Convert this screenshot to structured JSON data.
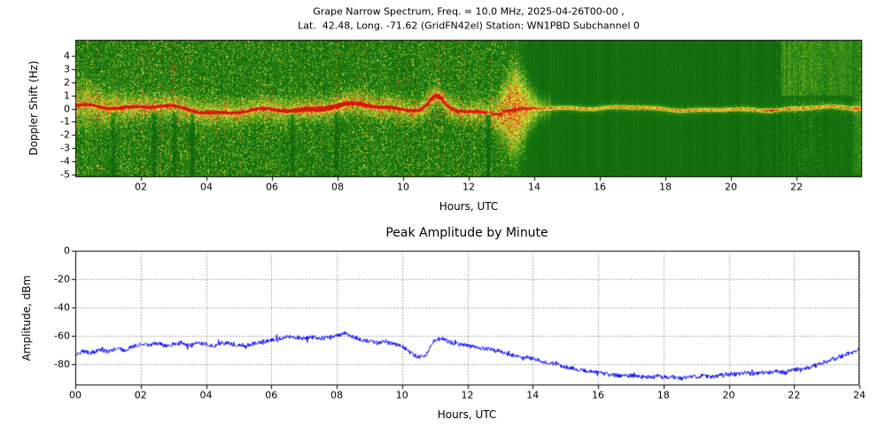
{
  "chart_data": [
    {
      "type": "heatmap",
      "subtype": "doppler-spectrogram",
      "title_line1": "Grape Narrow Spectrum, Freq. = 10.0 MHz, 2025-04-26T00-00 ,",
      "title_line2": "Lat.  42.48, Long. -71.62 (GridFN42el) Station: WN1PBD Subchannel 0",
      "xlabel": "Hours, UTC",
      "ylabel": "Doppler Shift (Hz)",
      "xlim": [
        0,
        24
      ],
      "ylim": [
        -5.2,
        5.2
      ],
      "xtick_values": [
        2,
        4,
        6,
        8,
        10,
        12,
        14,
        16,
        18,
        20,
        22
      ],
      "xtick_labels": [
        "02",
        "04",
        "06",
        "08",
        "10",
        "12",
        "14",
        "16",
        "18",
        "20",
        "22"
      ],
      "ytick_values": [
        4,
        3,
        2,
        1,
        0,
        -1,
        -2,
        -3,
        -4,
        -5
      ],
      "ytick_labels": [
        "4",
        "3",
        "2",
        "1",
        "0",
        "-1",
        "-2",
        "-3",
        "-4",
        "-5"
      ],
      "grid": false,
      "description": "Spectrogram on green background with yellow speckle noise columns. A strong red/orange Doppler trace wanders around 0 Hz from 00 to ~12 UTC (rising to about +1 Hz near 11 UTC), fades through a wide yellow fuzzy burst near 13.4 UTC, then continues as a thin faint yellow line near 0 Hz until 24 UTC with a small brightening near 21.2 UTC. Noise activity is high before ~13 UTC and quiet after ~14 UTC; a lighter patch appears above +1 Hz between ~21.5 and 23.7 UTC and a bright column at the right edge.",
      "colormap": [
        {
          "v": 0.0,
          "rgb": [
            8,
            80,
            8
          ]
        },
        {
          "v": 0.3,
          "rgb": [
            24,
            122,
            16
          ]
        },
        {
          "v": 0.55,
          "rgb": [
            150,
            195,
            40
          ]
        },
        {
          "v": 0.7,
          "rgb": [
            235,
            235,
            70
          ]
        },
        {
          "v": 0.85,
          "rgb": [
            255,
            150,
            30
          ]
        },
        {
          "v": 1.0,
          "rgb": [
            210,
            25,
            12
          ]
        }
      ],
      "features": {
        "trace": {
          "center_hz": 0,
          "strong_until_hour": 12.3,
          "weak_amplitude": 0.5,
          "blob_hour": 11.0,
          "blob_peak_hz": 0.9,
          "fade_burst_hour": 13.4,
          "late_blip_hour": 21.2
        },
        "noise": {
          "speckle_active_until_hour": 12.8,
          "quiet_after_hour": 14.2,
          "late_activity_hour": 22.3
        },
        "patches": {
          "top_right_hours": [
            21.5,
            23.7
          ],
          "top_right_above_hz": 1.0,
          "right_edge_hour": 23.72
        },
        "dark_plume_hours": [
          1.15,
          2.4,
          3.0,
          3.55,
          6.6,
          7.95,
          12.6
        ]
      }
    },
    {
      "type": "line",
      "title": "Peak Amplitude by Minute",
      "xlabel": "Hours, UTC",
      "ylabel": "Amplitude, dBm",
      "xlim": [
        0,
        24
      ],
      "ylim": [
        -95,
        0
      ],
      "xtick_values": [
        0,
        2,
        4,
        6,
        8,
        10,
        12,
        14,
        16,
        18,
        20,
        22,
        24
      ],
      "xtick_labels": [
        "00",
        "02",
        "04",
        "06",
        "08",
        "10",
        "12",
        "14",
        "16",
        "18",
        "20",
        "22",
        "24"
      ],
      "ytick_values": [
        0,
        -20,
        -40,
        -60,
        -80
      ],
      "ytick_labels": [
        "0",
        "-20",
        "-40",
        "-60",
        "-80"
      ],
      "grid": true,
      "grid_style": "dotted",
      "line_color": "#0000ff",
      "x_start": 0,
      "x_step": 0.25,
      "y": [
        -73,
        -71,
        -72,
        -70,
        -71,
        -69,
        -70,
        -68,
        -66,
        -67,
        -65,
        -67,
        -66,
        -65,
        -67,
        -65,
        -66,
        -67,
        -65,
        -66,
        -66,
        -67,
        -65,
        -64,
        -63,
        -62,
        -60,
        -61,
        -62,
        -61,
        -62,
        -61,
        -60,
        -58,
        -61,
        -63,
        -64,
        -65,
        -64,
        -66,
        -67,
        -72,
        -75,
        -73,
        -63,
        -62,
        -65,
        -66,
        -67,
        -68,
        -69,
        -70,
        -71,
        -73,
        -74,
        -75,
        -76,
        -78,
        -79,
        -80,
        -82,
        -83,
        -84,
        -85,
        -86,
        -87,
        -88,
        -88,
        -88,
        -89,
        -89,
        -89,
        -89,
        -89,
        -90,
        -89,
        -89,
        -88,
        -89,
        -88,
        -87,
        -87,
        -86,
        -87,
        -86,
        -86,
        -85,
        -86,
        -84,
        -83,
        -82,
        -80,
        -78,
        -76,
        -74,
        -72,
        -70
      ],
      "end_spike": {
        "x": 24,
        "top": -2,
        "bottom": -93
      }
    }
  ]
}
